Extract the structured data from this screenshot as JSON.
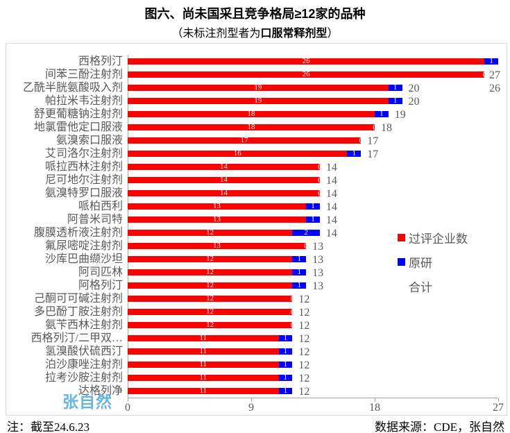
{
  "subtitle": {
    "prefix": "（未标注剂型者为",
    "bold": "口服常释剂型",
    "suffix": "）"
  },
  "watermark": "张自然",
  "footer": {
    "note": "注：截至24.6.23",
    "source": "数据来源：CDE，张自然"
  },
  "colors": {
    "passed": "#FF0000",
    "originator": "#0000FF",
    "bar_value_text": "#FFFFFF",
    "label_text": "#595959",
    "axis_line": "#A6A6A6",
    "frame_border": "#D9D9D9",
    "watermark": "#4FA8DC"
  },
  "chart_data": {
    "type": "bar",
    "orientation": "horizontal",
    "title": "图六、尚未国采且竞争格局≥12家的品种",
    "subtitle": "（未标注剂型者为口服常释剂型）",
    "xlabel": "",
    "ylabel": "",
    "x_axis": {
      "ticks": [
        0,
        9,
        18,
        27
      ],
      "min": 0,
      "max": 27,
      "grid": false
    },
    "legend": [
      {
        "label": "过评企业数",
        "color": "#FF0000"
      },
      {
        "label": "原研",
        "color": "#0000FF"
      },
      {
        "label": "合计",
        "color": null
      }
    ],
    "series_names": [
      "过评企业数",
      "原研",
      "合计"
    ],
    "rows": [
      {
        "category": "西格列汀",
        "passed": 26,
        "originator": 1,
        "total": 27,
        "total_far_right": true
      },
      {
        "category": "间苯三酚注射剂",
        "passed": 26,
        "originator": 0,
        "total": 26,
        "total_far_right": true
      },
      {
        "category": "乙酰半胱氨酸吸入剂",
        "passed": 19,
        "originator": 1,
        "total": 20,
        "total_far_right": false
      },
      {
        "category": "帕拉米韦注射剂",
        "passed": 19,
        "originator": 1,
        "total": 20,
        "total_far_right": false
      },
      {
        "category": "舒更葡糖钠注射剂",
        "passed": 18,
        "originator": 1,
        "total": 19,
        "total_far_right": false
      },
      {
        "category": "地氯雷他定口服液",
        "passed": 18,
        "originator": 0,
        "total": 18,
        "total_far_right": false
      },
      {
        "category": "氨溴索口服液",
        "passed": 17,
        "originator": 0,
        "total": 17,
        "total_far_right": false
      },
      {
        "category": "艾司洛尔注射剂",
        "passed": 16,
        "originator": 1,
        "total": 17,
        "total_far_right": false
      },
      {
        "category": "哌拉西林注射剂",
        "passed": 14,
        "originator": 0,
        "total": 14,
        "total_far_right": false
      },
      {
        "category": "尼可地尔注射剂",
        "passed": 14,
        "originator": 0,
        "total": 14,
        "total_far_right": false
      },
      {
        "category": "氨溴特罗口服液",
        "passed": 14,
        "originator": 0,
        "total": 14,
        "total_far_right": false
      },
      {
        "category": "哌柏西利",
        "passed": 13,
        "originator": 1,
        "total": 14,
        "total_far_right": false
      },
      {
        "category": "阿普米司特",
        "passed": 13,
        "originator": 1,
        "total": 14,
        "total_far_right": false
      },
      {
        "category": "腹膜透析液注射剂",
        "passed": 12,
        "originator": 2,
        "total": 14,
        "total_far_right": false
      },
      {
        "category": "氟尿嘧啶注射剂",
        "passed": 13,
        "originator": 0,
        "total": 13,
        "total_far_right": false
      },
      {
        "category": "沙库巴曲缬沙坦",
        "passed": 12,
        "originator": 1,
        "total": 13,
        "total_far_right": false
      },
      {
        "category": "阿司匹林",
        "passed": 12,
        "originator": 1,
        "total": 13,
        "total_far_right": false
      },
      {
        "category": "阿格列汀",
        "passed": 12,
        "originator": 1,
        "total": 13,
        "total_far_right": false
      },
      {
        "category": "己酮可可碱注射剂",
        "passed": 12,
        "originator": 0,
        "total": 12,
        "total_far_right": false
      },
      {
        "category": "多巴酚丁胺注射剂",
        "passed": 12,
        "originator": 0,
        "total": 12,
        "total_far_right": false
      },
      {
        "category": "氨苄西林注射剂",
        "passed": 12,
        "originator": 0,
        "total": 12,
        "total_far_right": false
      },
      {
        "category": "西格列汀/二甲双…",
        "passed": 11,
        "originator": 1,
        "total": 12,
        "total_far_right": false
      },
      {
        "category": "氢溴酸伏硫西汀",
        "passed": 11,
        "originator": 1,
        "total": 12,
        "total_far_right": false
      },
      {
        "category": "泊沙康唑注射剂",
        "passed": 11,
        "originator": 1,
        "total": 12,
        "total_far_right": false
      },
      {
        "category": "拉考沙胺注射剂",
        "passed": 11,
        "originator": 1,
        "total": 12,
        "total_far_right": false
      },
      {
        "category": "达格列净",
        "passed": 11,
        "originator": 1,
        "total": 12,
        "total_far_right": false
      }
    ]
  }
}
